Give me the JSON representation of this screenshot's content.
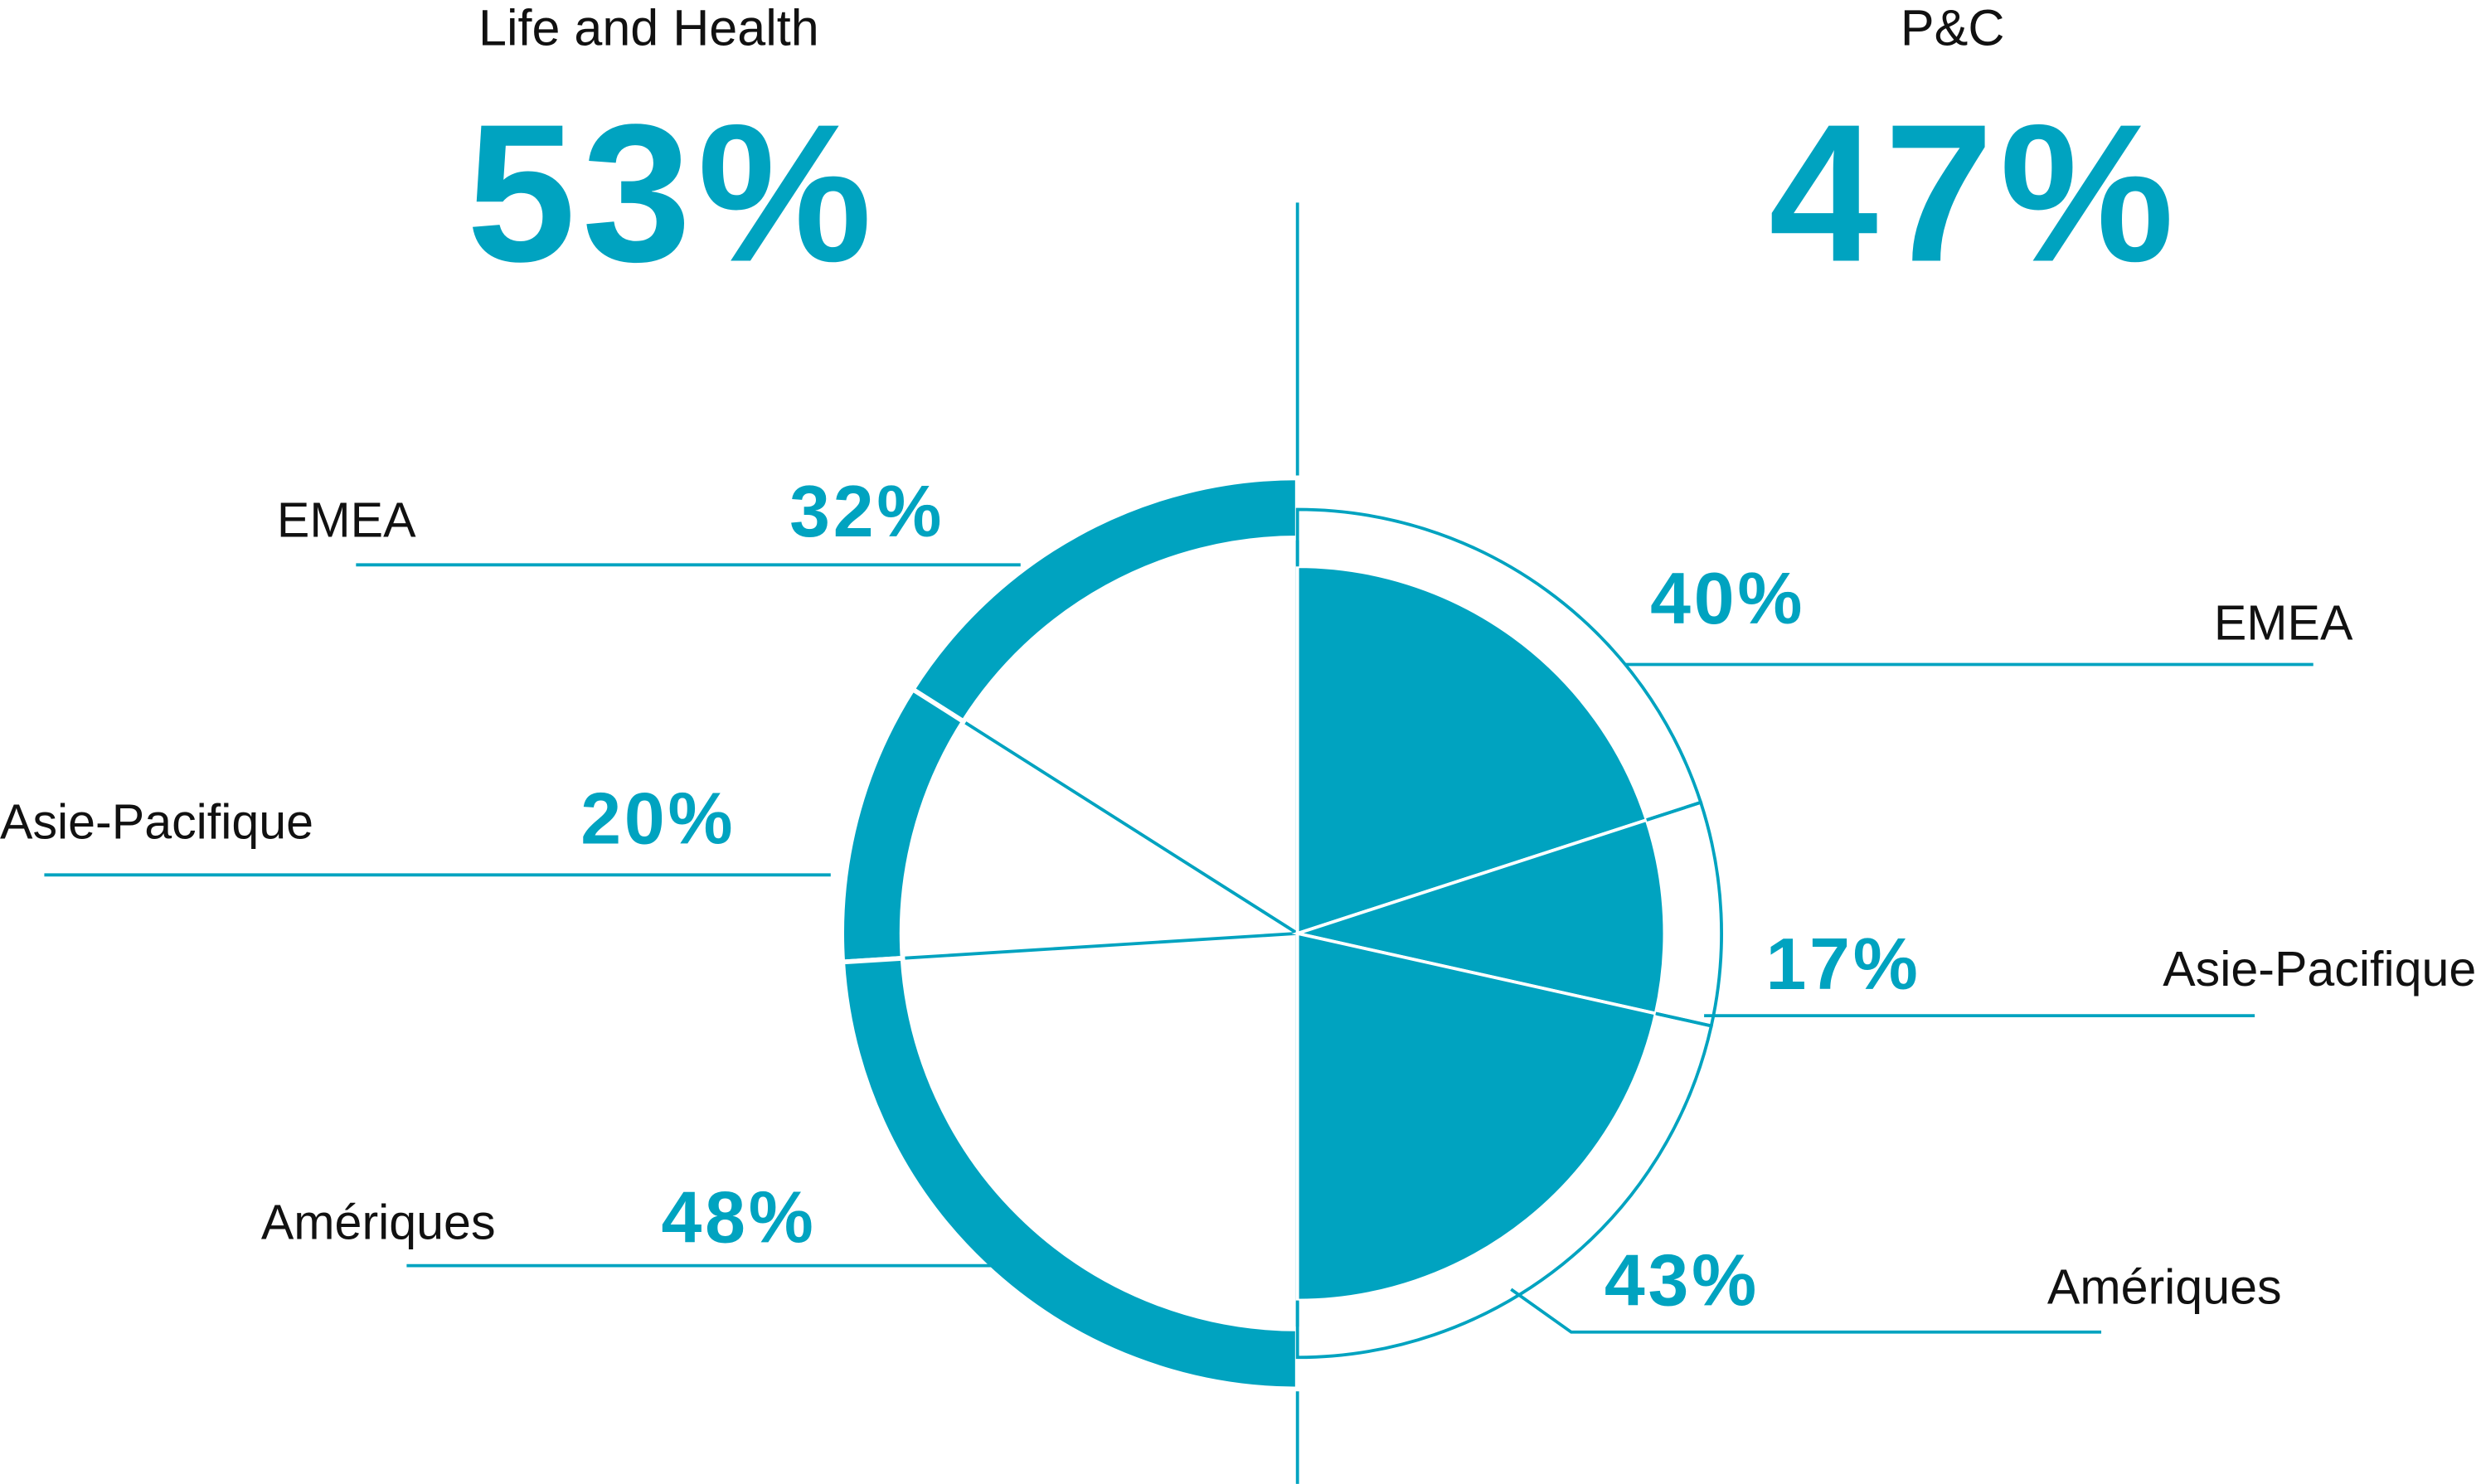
{
  "chart_data": [
    {
      "type": "pie",
      "style": "ring",
      "title": "Life and Health",
      "share": 53,
      "share_label": "53%",
      "color": "#00a3c0",
      "categories": [
        "EMEA",
        "Asie-Pacifique",
        "Amériques"
      ],
      "values": [
        32,
        20,
        48
      ],
      "value_labels": [
        "32%",
        "20%",
        "48%"
      ]
    },
    {
      "type": "pie",
      "style": "filled",
      "title": "P&C",
      "share": 47,
      "share_label": "47%",
      "color": "#00a3c0",
      "categories": [
        "EMEA",
        "Asie-Pacifique",
        "Amériques"
      ],
      "values": [
        40,
        17,
        43
      ],
      "value_labels": [
        "40%",
        "17%",
        "43%"
      ]
    }
  ]
}
